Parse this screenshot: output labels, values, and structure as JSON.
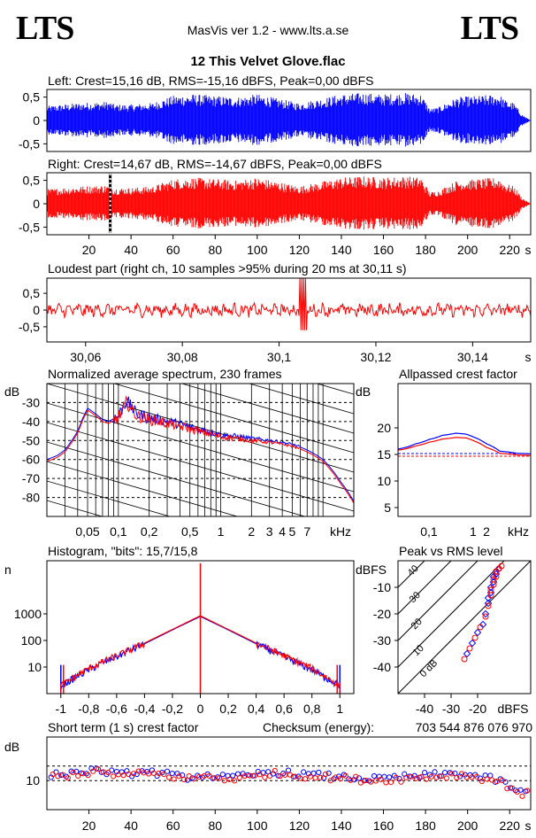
{
  "header": {
    "logo_left": "LTS",
    "logo_right": "LTS",
    "app_title": "MasVis ver 1.2 - www.lts.a.se",
    "file_name": "12 This Velvet Glove.flac"
  },
  "panels": {
    "left": {
      "title": "Left: Crest=15,16 dB, RMS=-15,16 dBFS, Peak=0,00 dBFS",
      "color": "#0000ff",
      "yticks": [
        "0,5",
        "0",
        "-0,5"
      ]
    },
    "right": {
      "title": "Right: Crest=14,67 dB, RMS=-14,67 dBFS, Peak=0,00 dBFS",
      "color": "#ff0000",
      "yticks": [
        "0,5",
        "0",
        "-0,5"
      ],
      "xticks": [
        "20",
        "40",
        "60",
        "80",
        "100",
        "120",
        "140",
        "160",
        "180",
        "200",
        "220",
        "s"
      ]
    },
    "loudest": {
      "title": "Loudest part (right ch, 10 samples >95% during 20 ms at 30,11 s)",
      "yticks": [
        "0,5",
        "0",
        "-0,5"
      ],
      "xticks": [
        "30,06",
        "30,08",
        "30,1",
        "30,12",
        "30,14",
        "s"
      ]
    },
    "spectrum": {
      "title": "Normalized average spectrum, 230 frames",
      "yunit": "dB",
      "yticks": [
        "-30",
        "-40",
        "-50",
        "-60",
        "-70",
        "-80"
      ],
      "xticks": [
        "0,05",
        "0,1",
        "0,2",
        "0,5",
        "1",
        "2",
        "3",
        "4",
        "5",
        "7",
        "kHz"
      ]
    },
    "allpass": {
      "title": "Allpassed crest factor",
      "yunit": "dB",
      "yticks": [
        "20",
        "15",
        "10",
        "5"
      ],
      "xticks": [
        "0,1",
        "1",
        "2",
        "kHz"
      ]
    },
    "histogram": {
      "title": "Histogram, \"bits\": 15,7/15,8",
      "yunit": "n",
      "yticks": [
        "1000",
        "100",
        "10"
      ],
      "xticks": [
        "-1",
        "-0,8",
        "-0,6",
        "-0,4",
        "-0,2",
        "0",
        "0,2",
        "0,4",
        "0,6",
        "0,8",
        "1"
      ]
    },
    "peakrms": {
      "title": "Peak vs RMS level",
      "yunit": "dBFS",
      "yticks": [
        "-10",
        "-20",
        "-30",
        "-40"
      ],
      "xticks": [
        "-40",
        "-30",
        "-20",
        "dBFS"
      ],
      "diag_labels": [
        "40",
        "30",
        "20",
        "10",
        "0 dB"
      ]
    },
    "shortcrest": {
      "title": "Short term (1 s) crest factor",
      "checksum_label": "Checksum (energy):",
      "checksum_value": "703 544 876 076 970",
      "yunit": "dB",
      "yticks": [
        "10"
      ],
      "xticks": [
        "20",
        "40",
        "60",
        "80",
        "100",
        "120",
        "140",
        "160",
        "180",
        "200",
        "220",
        "s"
      ]
    }
  },
  "chart_data": [
    {
      "type": "line",
      "title": "Left: Crest=15,16 dB, RMS=-15,16 dBFS, Peak=0,00 dBFS",
      "xlabel": "s",
      "ylim": [
        -1,
        1
      ],
      "xlim": [
        0,
        230
      ],
      "envelope_time_s": [
        0,
        15,
        30,
        32,
        40,
        50,
        60,
        70,
        80,
        90,
        100,
        110,
        120,
        130,
        140,
        150,
        160,
        170,
        178,
        182,
        186,
        195,
        205,
        215,
        218,
        222,
        226,
        230
      ],
      "envelope_amplitude": [
        0.5,
        0.6,
        0.65,
        0.55,
        0.55,
        0.6,
        0.85,
        0.9,
        0.85,
        0.8,
        0.9,
        0.75,
        0.6,
        0.75,
        0.9,
        0.95,
        0.9,
        0.95,
        0.9,
        0.4,
        0.45,
        0.8,
        0.85,
        0.9,
        0.7,
        0.6,
        0.2,
        0.0
      ]
    },
    {
      "type": "line",
      "title": "Right: Crest=14,67 dB, RMS=-14,67 dBFS, Peak=0,00 dBFS",
      "xlabel": "s",
      "ylim": [
        -1,
        1
      ],
      "xlim": [
        0,
        230
      ],
      "marker_s": 30.11,
      "envelope_time_s": [
        0,
        15,
        30,
        32,
        40,
        50,
        60,
        70,
        80,
        90,
        100,
        110,
        120,
        130,
        140,
        150,
        160,
        170,
        178,
        182,
        186,
        195,
        205,
        215,
        218,
        222,
        226,
        230
      ],
      "envelope_amplitude": [
        0.5,
        0.6,
        0.65,
        0.55,
        0.55,
        0.6,
        0.85,
        0.9,
        0.85,
        0.8,
        0.9,
        0.75,
        0.6,
        0.75,
        0.9,
        0.95,
        0.9,
        0.95,
        0.9,
        0.4,
        0.45,
        0.8,
        0.85,
        0.9,
        0.7,
        0.6,
        0.2,
        0.0
      ]
    },
    {
      "type": "line",
      "title": "Loudest part (right ch, 10 samples >95% during 20 ms at 30,11 s)",
      "xlabel": "s",
      "xlim": [
        30.052,
        30.152
      ],
      "ylim": [
        -0.9,
        0.9
      ],
      "peak_s": 30.105,
      "typical_amplitude": 0.15
    },
    {
      "type": "line",
      "title": "Normalized average spectrum, 230 frames",
      "xlabel": "kHz",
      "ylabel": "dB",
      "xscale": "log",
      "xlim": [
        0.02,
        20
      ],
      "ylim": [
        -90,
        -20
      ],
      "x": [
        0.02,
        0.025,
        0.03,
        0.04,
        0.045,
        0.05,
        0.06,
        0.07,
        0.08,
        0.1,
        0.12,
        0.15,
        0.2,
        0.3,
        0.5,
        0.7,
        1.0,
        1.5,
        2.0,
        3.0,
        4.0,
        5.0,
        7.0,
        10,
        15,
        20
      ],
      "series": [
        {
          "color": "#0000ff",
          "values": [
            -60,
            -58,
            -55,
            -45,
            -38,
            -33,
            -36,
            -39,
            -40,
            -37,
            -29,
            -36,
            -38,
            -40,
            -43,
            -45,
            -47,
            -48,
            -49,
            -50,
            -51,
            -52,
            -55,
            -60,
            -72,
            -82
          ]
        },
        {
          "color": "#ff0000",
          "values": [
            -61,
            -59,
            -56,
            -46,
            -39,
            -34,
            -37,
            -40,
            -41,
            -38,
            -30,
            -37,
            -39,
            -41,
            -44,
            -46,
            -48,
            -49,
            -50,
            -51,
            -52,
            -53,
            -56,
            -61,
            -73,
            -83
          ]
        }
      ]
    },
    {
      "type": "line",
      "title": "Allpassed crest factor",
      "xlabel": "kHz",
      "ylabel": "dB",
      "xscale": "log",
      "xlim": [
        0.02,
        20
      ],
      "ylim": [
        0,
        25
      ],
      "x": [
        0.02,
        0.05,
        0.1,
        0.2,
        0.4,
        0.7,
        1.0,
        2.0,
        4.0,
        10,
        20
      ],
      "series": [
        {
          "color": "#0000ff",
          "values": [
            16,
            17,
            17.8,
            18.6,
            19,
            18.8,
            18.3,
            17,
            15.6,
            15.2,
            15.1
          ]
        },
        {
          "color": "#ff0000",
          "values": [
            15.8,
            16.6,
            17.3,
            17.9,
            18.2,
            18.1,
            17.6,
            16.3,
            15.2,
            14.9,
            14.8
          ]
        }
      ],
      "reference_lines": [
        15.16,
        14.67
      ]
    },
    {
      "type": "line",
      "title": "Histogram, \"bits\": 15,7/15,8",
      "xlabel": "",
      "ylabel": "n",
      "yscale": "log",
      "xlim": [
        -1.1,
        1.1
      ],
      "ylim": [
        1,
        100000
      ],
      "x": [
        -1.0,
        -0.8,
        -0.6,
        -0.4,
        -0.2,
        0.0,
        0.2,
        0.4,
        0.6,
        0.8,
        1.0
      ],
      "series": [
        {
          "color": "#0000ff",
          "values": [
            2,
            8,
            25,
            75,
            250,
            800,
            250,
            75,
            25,
            8,
            2
          ]
        },
        {
          "color": "#ff0000",
          "values": [
            2,
            9,
            27,
            80,
            260,
            850,
            260,
            80,
            27,
            9,
            2
          ]
        }
      ],
      "spike_at_zero": 80000
    },
    {
      "type": "scatter",
      "title": "Peak vs RMS level",
      "xlabel": "dBFS",
      "ylabel": "dBFS",
      "xlim": [
        -50,
        0
      ],
      "ylim": [
        -50,
        0
      ],
      "series": [
        {
          "color": "#0000ff",
          "points": [
            [
              -24,
              -35
            ],
            [
              -22,
              -31
            ],
            [
              -20,
              -27
            ],
            [
              -18,
              -24
            ],
            [
              -17,
              -20
            ],
            [
              -16,
              -16
            ],
            [
              -15,
              -12
            ],
            [
              -14,
              -8
            ],
            [
              -13,
              -5
            ],
            [
              -12,
              -3
            ],
            [
              -15,
              -10
            ],
            [
              -14,
              -6
            ],
            [
              -16,
              -14
            ],
            [
              -13,
              -4
            ]
          ]
        },
        {
          "color": "#ff0000",
          "points": [
            [
              -25,
              -37
            ],
            [
              -23,
              -33
            ],
            [
              -21,
              -29
            ],
            [
              -19,
              -25
            ],
            [
              -17,
              -21
            ],
            [
              -16,
              -17
            ],
            [
              -15,
              -13
            ],
            [
              -14,
              -9
            ],
            [
              -13,
              -6
            ],
            [
              -12,
              -3
            ],
            [
              -11,
              -2
            ],
            [
              -15,
              -11
            ],
            [
              -14,
              -7
            ],
            [
              -13,
              -4
            ]
          ]
        }
      ]
    },
    {
      "type": "scatter",
      "title": "Short term (1 s) crest factor",
      "xlabel": "s",
      "ylabel": "dB",
      "xlim": [
        0,
        230
      ],
      "ylim": [
        0,
        25
      ],
      "reference_lines": [
        15,
        10
      ],
      "x": [
        5,
        15,
        25,
        35,
        45,
        55,
        65,
        75,
        85,
        95,
        105,
        115,
        125,
        135,
        145,
        155,
        165,
        175,
        185,
        195,
        205,
        215,
        220,
        225
      ],
      "series": [
        {
          "color": "#0000ff",
          "values": [
            12,
            13,
            13.5,
            12,
            13,
            12.5,
            11,
            12,
            11,
            11.5,
            13,
            12.5,
            12,
            11.5,
            11,
            10.5,
            11,
            11.5,
            12,
            12.5,
            11.5,
            10,
            8,
            6
          ]
        },
        {
          "color": "#ff0000",
          "values": [
            11.5,
            12.5,
            13,
            11.5,
            12.5,
            12,
            10.5,
            11.5,
            10.5,
            11,
            12.5,
            12,
            11.5,
            11,
            10.5,
            10,
            10.5,
            11,
            11.5,
            12,
            11,
            9.5,
            7.5,
            5.5
          ]
        }
      ]
    }
  ]
}
